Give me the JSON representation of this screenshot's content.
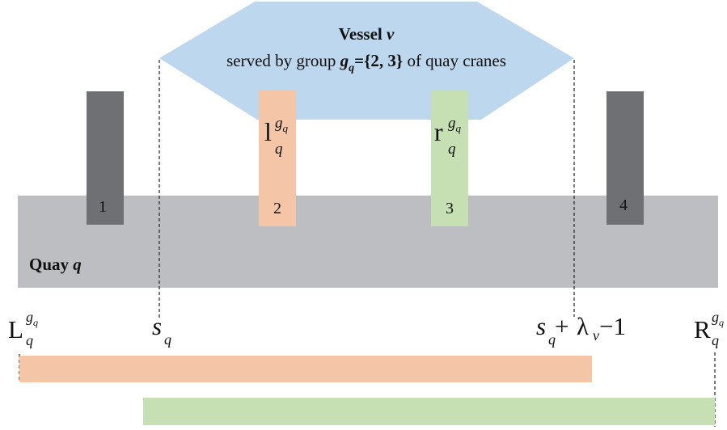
{
  "vessel": {
    "title_prefix": "Vessel ",
    "title_var": "v",
    "subtitle_prefix": "served by group ",
    "subtitle_var": "g",
    "subtitle_var_sub": "q",
    "subtitle_set": "={2, 3}",
    "subtitle_suffix": " of quay cranes"
  },
  "quay": {
    "label_prefix": "Quay ",
    "label_var": "q"
  },
  "cranes": [
    {
      "number": "1",
      "color": "#6e7074"
    },
    {
      "number": "2",
      "color": "#f4c5a6",
      "label_main": "l",
      "label_sub": "q",
      "label_sup": "g",
      "label_sup_sub": "q"
    },
    {
      "number": "3",
      "color": "#c6e0b3",
      "label_main": "r",
      "label_sub": "q",
      "label_sup": "g",
      "label_sup_sub": "q"
    },
    {
      "number": "4",
      "color": "#6e7074"
    }
  ],
  "bounds": {
    "left": {
      "main": "L",
      "sub": "q",
      "sup": "g",
      "sup_sub": "q"
    },
    "start": {
      "main": "s",
      "sub": "q"
    },
    "end": {
      "main": "s",
      "sub": "q",
      "plus": " + ",
      "lambda": "λ",
      "lambda_sub": "v",
      "minus": " −1"
    },
    "right": {
      "main": "R",
      "sub": "q",
      "sup": "g",
      "sup_sub": "q"
    }
  },
  "colors": {
    "vessel": "#bdd7ee",
    "quay": "#bdbec2",
    "range_orange": "#f4c5a6",
    "range_green": "#c6e0b3"
  }
}
